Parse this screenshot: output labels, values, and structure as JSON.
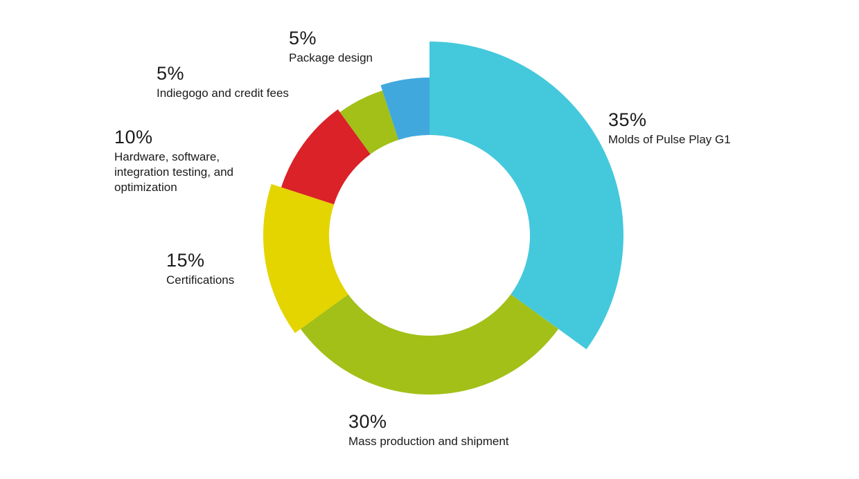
{
  "chart_data": {
    "type": "pie",
    "subtype": "donut",
    "legend": "none",
    "slices": [
      {
        "percent_label": "35%",
        "label": "Molds of Pulse Play G1",
        "value": 35,
        "color": "#44c8dc"
      },
      {
        "percent_label": "30%",
        "label": "Mass production and shipment",
        "value": 30,
        "color": "#a2c018"
      },
      {
        "percent_label": "15%",
        "label": "Certifications",
        "value": 15,
        "color": "#e4d400"
      },
      {
        "percent_label": "10%",
        "label": "Hardware, software, integration testing, and optimization",
        "value": 10,
        "color": "#da2228"
      },
      {
        "percent_label": "5%",
        "label": "Indiegogo and credit fees",
        "value": 5,
        "color": "#a2c018"
      },
      {
        "percent_label": "5%",
        "label": "Package design",
        "value": 5,
        "color": "#41a8de"
      }
    ]
  }
}
